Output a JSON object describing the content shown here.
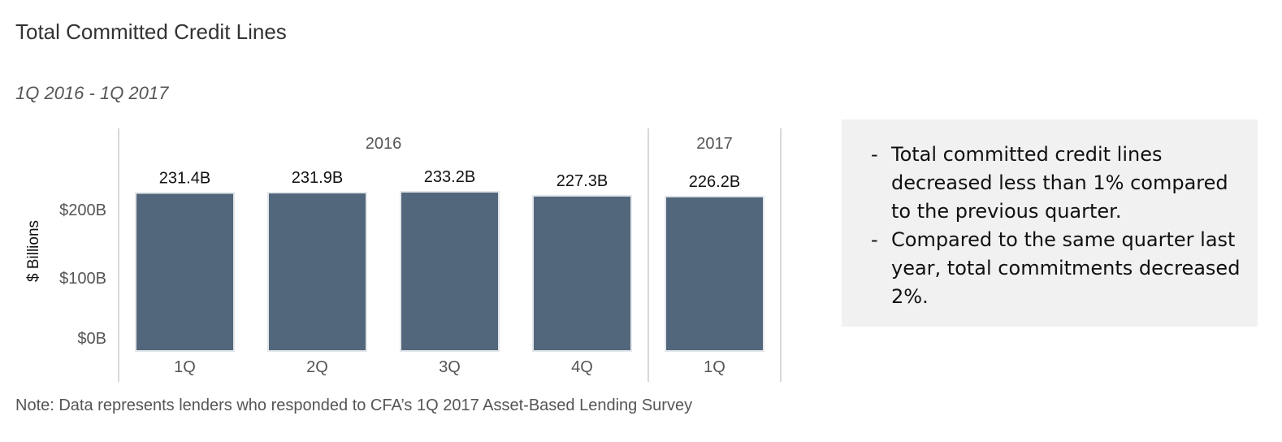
{
  "title": "Total Committed Credit Lines",
  "subtitle": "1Q 2016 - 1Q 2017",
  "note": "Note: Data represents lenders who responded to CFA’s 1Q 2017 Asset-Based Lending Survey",
  "commentary": [
    "Total committed credit lines decreased less than 1% compared to the previous quarter.",
    "Compared to the same quarter last year, total commitments decreased 2%."
  ],
  "chart_data": {
    "type": "bar",
    "ylabel": "$ Billions",
    "xlabel": "",
    "year_groups": [
      {
        "label": "2016",
        "categories": [
          "1Q",
          "2Q",
          "3Q",
          "4Q"
        ]
      },
      {
        "label": "2017",
        "categories": [
          "1Q"
        ]
      }
    ],
    "categories": [
      "1Q",
      "2Q",
      "3Q",
      "4Q",
      "1Q"
    ],
    "values": [
      231.4,
      231.9,
      233.2,
      227.3,
      226.2
    ],
    "data_labels": [
      "231.4B",
      "231.9B",
      "233.2B",
      "227.3B",
      "226.2B"
    ],
    "yticks": [
      {
        "value": 0,
        "label": "$0B"
      },
      {
        "value": 100,
        "label": "$100B"
      },
      {
        "value": 200,
        "label": "$200B"
      }
    ],
    "ylim": [
      0,
      233.2
    ],
    "grid": false,
    "colors": {
      "bar": "#52677b",
      "bar_outline": "#e3e6ea",
      "divider": "#cccccc"
    }
  }
}
